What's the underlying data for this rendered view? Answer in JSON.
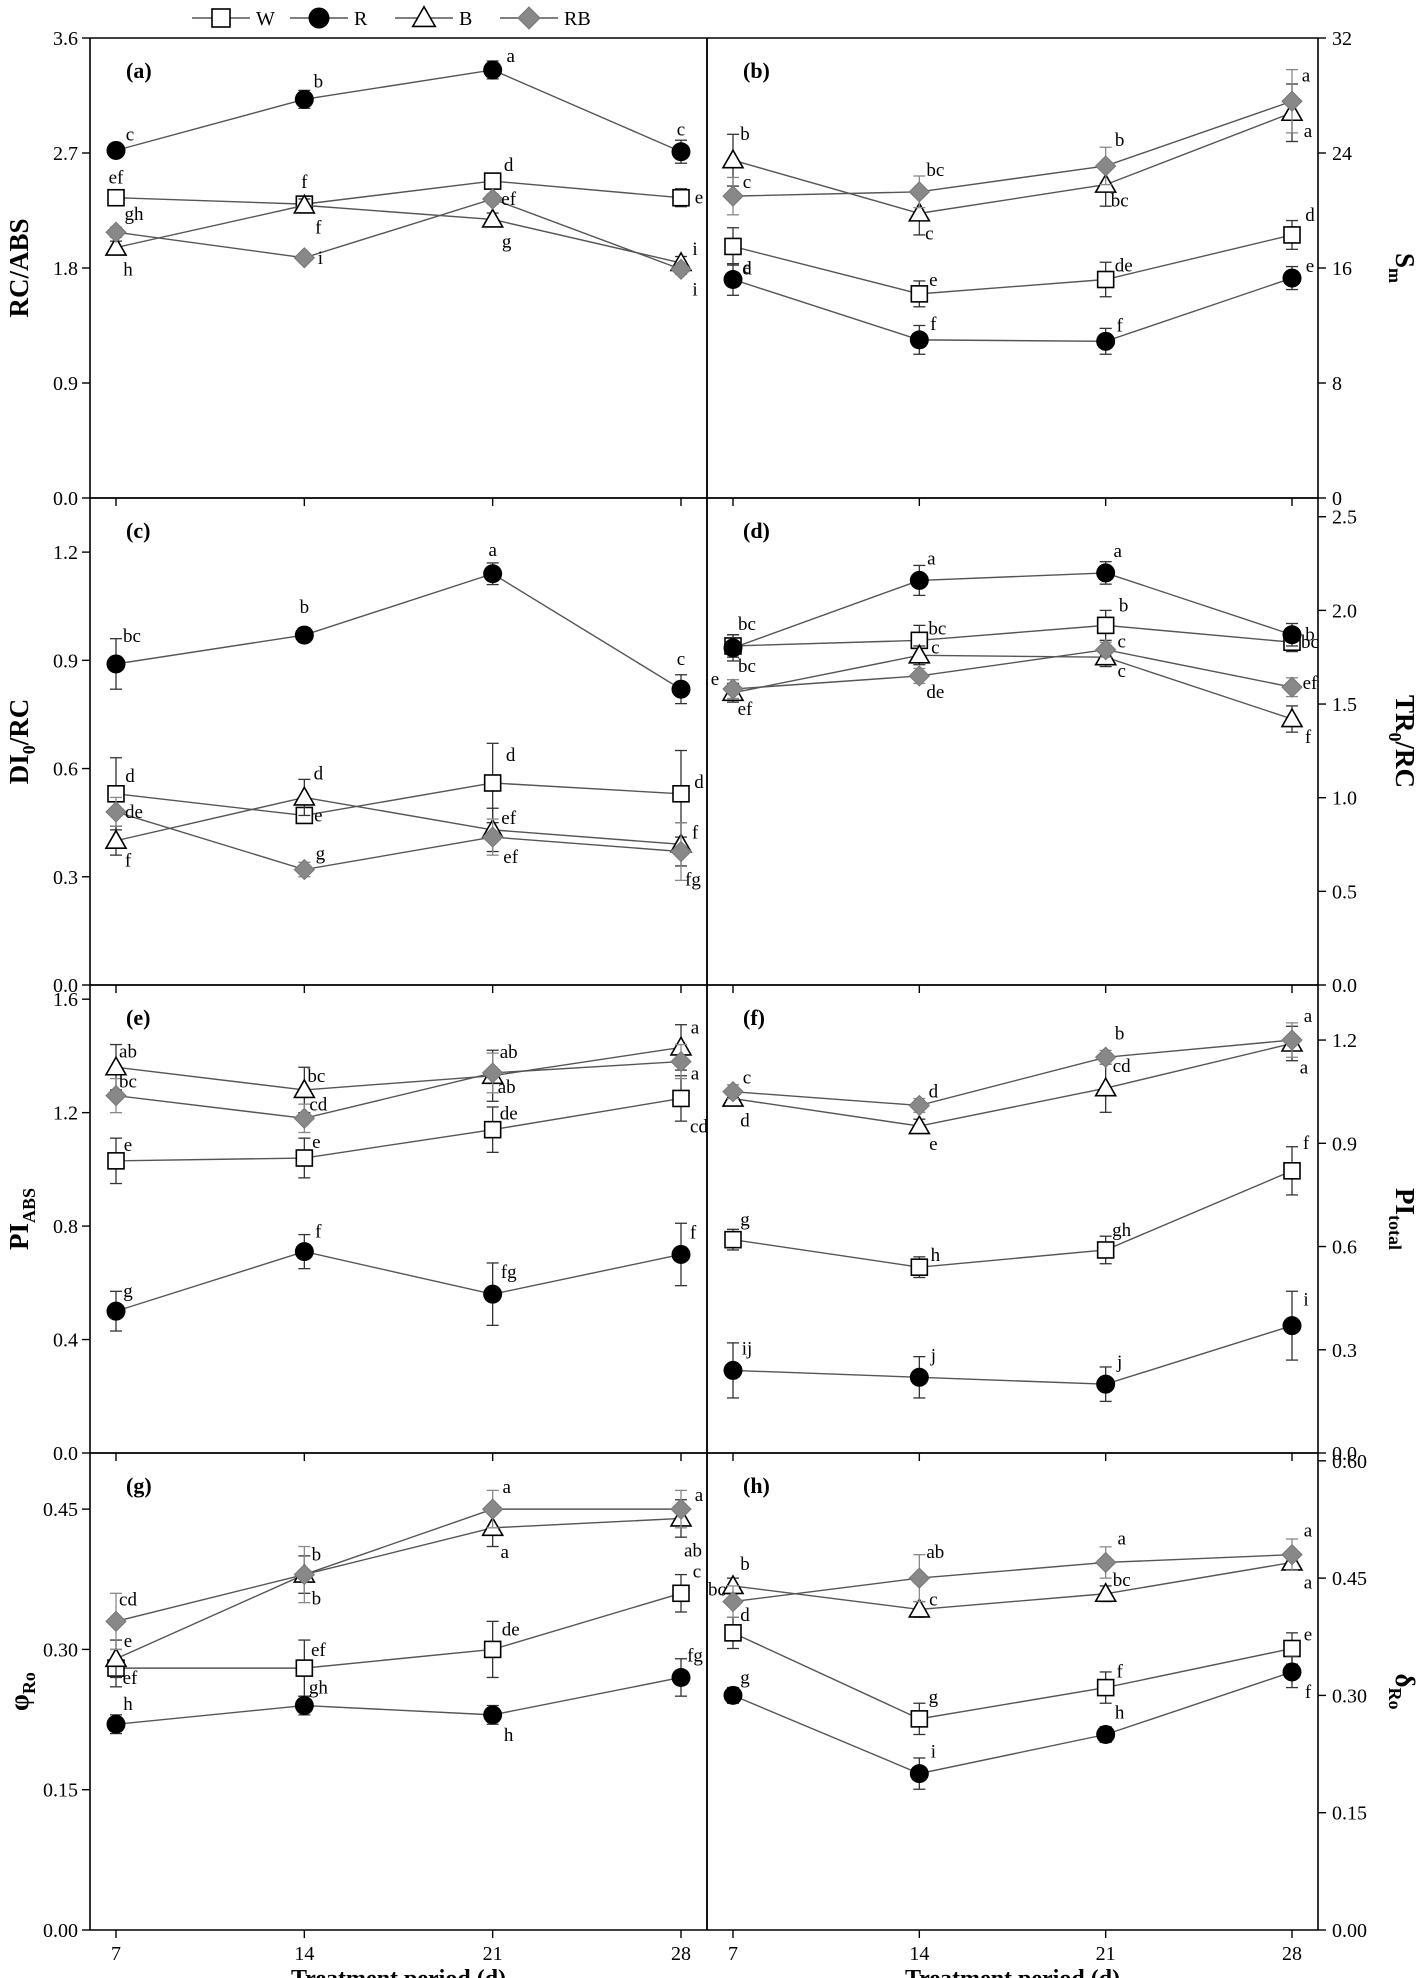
{
  "legend": [
    {
      "label": "W",
      "marker": "square-open"
    },
    {
      "label": "R",
      "marker": "circle-filled"
    },
    {
      "label": "B",
      "marker": "triangle-open"
    },
    {
      "label": "RB",
      "marker": "diamond-gray"
    }
  ],
  "colors": {
    "line": "#555555",
    "filled": "#000000",
    "gray": "#888888",
    "open_fill": "#ffffff"
  },
  "xlabel": "Treatment period (d)",
  "chart_data": [
    {
      "type": "line",
      "panel": "(a)",
      "side": "left",
      "ylabel": "RC/ABS",
      "ylabel_sub": "",
      "ylim": [
        0,
        3.6
      ],
      "yticks": [
        "0.0",
        "0.9",
        "1.8",
        "2.7",
        "3.6"
      ],
      "x": [
        7,
        14,
        21,
        28
      ],
      "xticks": [
        "7",
        "14",
        "21",
        "28"
      ],
      "series": [
        {
          "name": "W",
          "values": [
            2.35,
            2.3,
            2.48,
            2.35
          ],
          "errors": [
            0.04,
            0.05,
            0.04,
            0.07
          ],
          "labels": [
            "ef",
            "f",
            "d",
            "e"
          ]
        },
        {
          "name": "R",
          "values": [
            2.72,
            3.12,
            3.35,
            2.71
          ],
          "errors": [
            0.04,
            0.07,
            0.07,
            0.09
          ],
          "labels": [
            "c",
            "b",
            "a",
            "c"
          ]
        },
        {
          "name": "B",
          "values": [
            1.96,
            2.29,
            2.18,
            1.84
          ],
          "errors": [
            0.05,
            0.05,
            0.05,
            0.05
          ],
          "labels": [
            "h",
            "f",
            "g",
            "i"
          ]
        },
        {
          "name": "RB",
          "values": [
            2.08,
            1.88,
            2.34,
            1.79
          ],
          "errors": [
            0.04,
            0.03,
            0.04,
            0.04
          ],
          "labels": [
            "gh",
            "i",
            "ef",
            "i"
          ]
        }
      ]
    },
    {
      "type": "line",
      "panel": "(b)",
      "side": "right",
      "ylabel": "S",
      "ylabel_sub": "m",
      "ylim": [
        0,
        32
      ],
      "yticks": [
        "0",
        "8",
        "16",
        "24",
        "32"
      ],
      "x": [
        7,
        14,
        21,
        28
      ],
      "xticks": [
        "7",
        "14",
        "21",
        "28"
      ],
      "series": [
        {
          "name": "W",
          "values": [
            17.5,
            14.2,
            15.2,
            18.3
          ],
          "errors": [
            1.3,
            0.9,
            1.2,
            1.0
          ],
          "labels": [
            "d",
            "e",
            "de",
            "d"
          ]
        },
        {
          "name": "R",
          "values": [
            15.2,
            11.0,
            10.9,
            15.3
          ],
          "errors": [
            1.1,
            1.0,
            0.9,
            0.8
          ],
          "labels": [
            "e",
            "f",
            "f",
            "e"
          ]
        },
        {
          "name": "B",
          "values": [
            23.5,
            19.8,
            21.8,
            26.8
          ],
          "errors": [
            1.8,
            1.5,
            1.5,
            2.0
          ],
          "labels": [
            "b",
            "c",
            "bc",
            "a"
          ]
        },
        {
          "name": "RB",
          "values": [
            21.0,
            21.3,
            23.1,
            27.6
          ],
          "errors": [
            1.3,
            1.1,
            1.3,
            2.2
          ],
          "labels": [
            "c",
            "bc",
            "b",
            "a"
          ]
        }
      ]
    },
    {
      "type": "line",
      "panel": "(c)",
      "side": "left",
      "ylabel": "DI",
      "ylabel_sub": "0",
      "ylabel_suffix": "/RC",
      "ylim": [
        0,
        1.35
      ],
      "yticks": [
        "0.0",
        "0.3",
        "0.6",
        "0.9",
        "1.2"
      ],
      "x": [
        7,
        14,
        21,
        28
      ],
      "xticks": [
        "7",
        "14",
        "21",
        "28"
      ],
      "series": [
        {
          "name": "W",
          "values": [
            0.53,
            0.47,
            0.56,
            0.53
          ],
          "errors": [
            0.1,
            0.02,
            0.11,
            0.12
          ],
          "labels": [
            "d",
            "e",
            "d",
            "d"
          ]
        },
        {
          "name": "R",
          "values": [
            0.89,
            0.97,
            1.14,
            0.82
          ],
          "errors": [
            0.07,
            0.02,
            0.03,
            0.04
          ],
          "labels": [
            "bc",
            "b",
            "a",
            "c"
          ]
        },
        {
          "name": "B",
          "values": [
            0.4,
            0.52,
            0.43,
            0.39
          ],
          "errors": [
            0.04,
            0.05,
            0.06,
            0.06
          ],
          "labels": [
            "f",
            "d",
            "ef",
            "f"
          ]
        },
        {
          "name": "RB",
          "values": [
            0.48,
            0.32,
            0.41,
            0.37
          ],
          "errors": [
            0.04,
            0.02,
            0.05,
            0.08
          ],
          "labels": [
            "de",
            "g",
            "ef",
            "fg"
          ]
        }
      ]
    },
    {
      "type": "line",
      "panel": "(d)",
      "side": "right",
      "ylabel": "TR",
      "ylabel_sub": "0",
      "ylabel_suffix": "/RC",
      "ylim": [
        0,
        2.6
      ],
      "yticks": [
        "0.0",
        "0.5",
        "1.0",
        "1.5",
        "2.0",
        "2.5"
      ],
      "x": [
        7,
        14,
        21,
        28
      ],
      "xticks": [
        "7",
        "14",
        "21",
        "28"
      ],
      "series": [
        {
          "name": "W",
          "values": [
            1.81,
            1.84,
            1.92,
            1.83
          ],
          "errors": [
            0.06,
            0.08,
            0.08,
            0.05
          ],
          "labels": [
            "bc",
            "bc",
            "b",
            "bc"
          ]
        },
        {
          "name": "R",
          "values": [
            1.8,
            2.16,
            2.2,
            1.87
          ],
          "errors": [
            0.07,
            0.08,
            0.06,
            0.06
          ],
          "labels": [
            "bc",
            "a",
            "a",
            "b"
          ]
        },
        {
          "name": "B",
          "values": [
            1.56,
            1.76,
            1.75,
            1.42
          ],
          "errors": [
            0.05,
            0.05,
            0.05,
            0.07
          ],
          "labels": [
            "ef",
            "c",
            "c",
            "f"
          ]
        },
        {
          "name": "RB",
          "values": [
            1.58,
            1.65,
            1.79,
            1.59
          ],
          "errors": [
            0.05,
            0.04,
            0.04,
            0.05
          ],
          "labels": [
            "e",
            "de",
            "c",
            "ef"
          ]
        }
      ]
    },
    {
      "type": "line",
      "panel": "(e)",
      "side": "left",
      "ylabel": "PI",
      "ylabel_sub": "ABS",
      "ylim": [
        0,
        1.65
      ],
      "yticks": [
        "0.0",
        "0.4",
        "0.8",
        "1.2",
        "1.6"
      ],
      "x": [
        7,
        14,
        21,
        28
      ],
      "xticks": [
        "7",
        "14",
        "21",
        "28"
      ],
      "series": [
        {
          "name": "W",
          "values": [
            1.03,
            1.04,
            1.14,
            1.25
          ],
          "errors": [
            0.08,
            0.07,
            0.08,
            0.08
          ],
          "labels": [
            "e",
            "e",
            "de",
            "cd"
          ]
        },
        {
          "name": "R",
          "values": [
            0.5,
            0.71,
            0.56,
            0.7
          ],
          "errors": [
            0.07,
            0.06,
            0.11,
            0.11
          ],
          "labels": [
            "g",
            "f",
            "fg",
            "f"
          ]
        },
        {
          "name": "B",
          "values": [
            1.36,
            1.28,
            1.33,
            1.43
          ],
          "errors": [
            0.08,
            0.08,
            0.09,
            0.08
          ],
          "labels": [
            "ab",
            "bc",
            "ab",
            "a"
          ]
        },
        {
          "name": "RB",
          "values": [
            1.26,
            1.18,
            1.34,
            1.38
          ],
          "errors": [
            0.06,
            0.05,
            0.07,
            0.06
          ],
          "labels": [
            "bc",
            "cd",
            "ab",
            "a"
          ]
        }
      ]
    },
    {
      "type": "line",
      "panel": "(f)",
      "side": "right",
      "ylabel": "PI",
      "ylabel_sub": "total",
      "ylim": [
        0,
        1.36
      ],
      "yticks": [
        "0.0",
        "0.3",
        "0.6",
        "0.9",
        "1.2"
      ],
      "x": [
        7,
        14,
        21,
        28
      ],
      "xticks": [
        "7",
        "14",
        "21",
        "28"
      ],
      "series": [
        {
          "name": "W",
          "values": [
            0.62,
            0.54,
            0.59,
            0.82
          ],
          "errors": [
            0.03,
            0.03,
            0.04,
            0.07
          ],
          "labels": [
            "g",
            "h",
            "gh",
            "f"
          ]
        },
        {
          "name": "R",
          "values": [
            0.24,
            0.22,
            0.2,
            0.37
          ],
          "errors": [
            0.08,
            0.06,
            0.05,
            0.1
          ],
          "labels": [
            "ij",
            "j",
            "j",
            "i"
          ]
        },
        {
          "name": "B",
          "values": [
            1.03,
            0.95,
            1.06,
            1.19
          ],
          "errors": [
            0.02,
            0.02,
            0.07,
            0.05
          ],
          "labels": [
            "d",
            "e",
            "cd",
            "a"
          ]
        },
        {
          "name": "RB",
          "values": [
            1.05,
            1.01,
            1.15,
            1.2
          ],
          "errors": [
            0.02,
            0.02,
            0.02,
            0.05
          ],
          "labels": [
            "c",
            "d",
            "b",
            "a"
          ]
        }
      ]
    },
    {
      "type": "line",
      "panel": "(g)",
      "side": "left",
      "ylabel": "φ",
      "ylabel_sub": "Ro",
      "ylim": [
        0,
        0.51
      ],
      "yticks": [
        "0.00",
        "0.15",
        "0.30",
        "0.45"
      ],
      "x": [
        7,
        14,
        21,
        28
      ],
      "xticks": [
        "7",
        "14",
        "21",
        "28"
      ],
      "series": [
        {
          "name": "W",
          "values": [
            0.28,
            0.28,
            0.3,
            0.36
          ],
          "errors": [
            0.02,
            0.03,
            0.03,
            0.02
          ],
          "labels": [
            "ef",
            "ef",
            "de",
            "c"
          ]
        },
        {
          "name": "R",
          "values": [
            0.22,
            0.24,
            0.23,
            0.27
          ],
          "errors": [
            0.01,
            0.01,
            0.01,
            0.02
          ],
          "labels": [
            "h",
            "gh",
            "h",
            "fg"
          ]
        },
        {
          "name": "B",
          "values": [
            0.29,
            0.38,
            0.43,
            0.44
          ],
          "errors": [
            0.02,
            0.02,
            0.02,
            0.02
          ],
          "labels": [
            "e",
            "b",
            "a",
            "ab"
          ]
        },
        {
          "name": "RB",
          "values": [
            0.33,
            0.38,
            0.45,
            0.45
          ],
          "errors": [
            0.03,
            0.03,
            0.02,
            0.02
          ],
          "labels": [
            "cd",
            "b",
            "a",
            "a"
          ]
        }
      ]
    },
    {
      "type": "line",
      "panel": "(h)",
      "side": "right",
      "ylabel": "δ",
      "ylabel_sub": "Ro",
      "ylim": [
        0,
        0.61
      ],
      "yticks": [
        "0.00",
        "0.15",
        "0.30",
        "0.45",
        "0.60"
      ],
      "x": [
        7,
        14,
        21,
        28
      ],
      "xticks": [
        "7",
        "14",
        "21",
        "28"
      ],
      "series": [
        {
          "name": "W",
          "values": [
            0.38,
            0.27,
            0.31,
            0.36
          ],
          "errors": [
            0.02,
            0.02,
            0.02,
            0.02
          ],
          "labels": [
            "d",
            "g",
            "f",
            "e"
          ]
        },
        {
          "name": "R",
          "values": [
            0.3,
            0.2,
            0.25,
            0.33
          ],
          "errors": [
            0.01,
            0.02,
            0.01,
            0.02
          ],
          "labels": [
            "g",
            "i",
            "h",
            "f"
          ]
        },
        {
          "name": "B",
          "values": [
            0.44,
            0.41,
            0.43,
            0.47
          ],
          "errors": [
            0.01,
            0.01,
            0.01,
            0.01
          ],
          "labels": [
            "b",
            "c",
            "bc",
            "a"
          ]
        },
        {
          "name": "RB",
          "values": [
            0.42,
            0.45,
            0.47,
            0.48
          ],
          "errors": [
            0.02,
            0.03,
            0.02,
            0.02
          ],
          "labels": [
            "bc",
            "ab",
            "a",
            "a"
          ]
        }
      ]
    }
  ]
}
